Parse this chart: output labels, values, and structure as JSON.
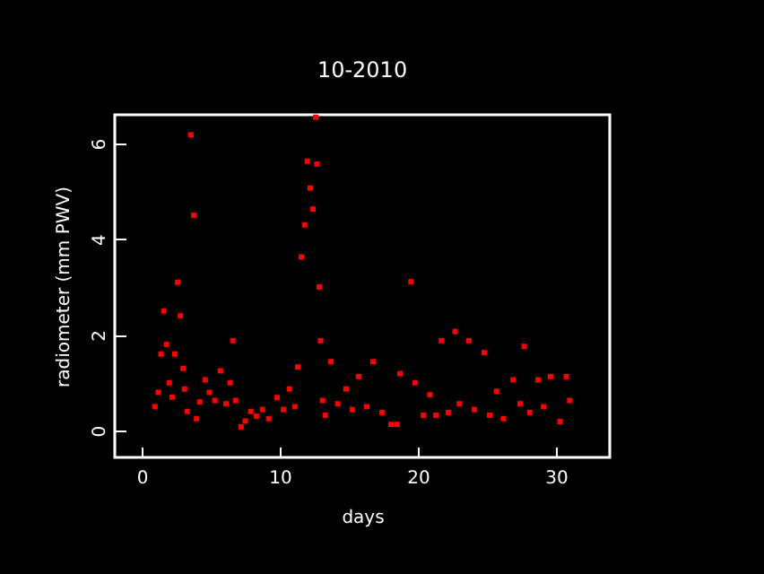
{
  "chart_data": {
    "type": "scatter",
    "title": "10-2010",
    "xlabel": "days",
    "ylabel": "radiometer (mm PWV)",
    "x": [
      0.96,
      1.2,
      1.4,
      1.6,
      1.8,
      2.0,
      2.2,
      2.4,
      2.6,
      2.8,
      3.0,
      3.1,
      3.3,
      3.56,
      3.77,
      3.97,
      4.2,
      4.6,
      4.9,
      5.3,
      5.7,
      6.1,
      6.4,
      6.6,
      6.8,
      7.2,
      7.5,
      7.9,
      8.3,
      8.75,
      9.2,
      9.8,
      10.26,
      10.7,
      11.1,
      11.3,
      11.56,
      11.8,
      12.0,
      12.2,
      12.4,
      12.6,
      12.7,
      12.86,
      12.95,
      13.1,
      13.3,
      13.7,
      14.2,
      14.8,
      15.25,
      15.7,
      16.3,
      16.75,
      17.4,
      18.05,
      18.5,
      18.7,
      19.5,
      19.8,
      20.4,
      20.87,
      21.3,
      21.7,
      22.2,
      22.7,
      23.0,
      23.7,
      24.1,
      24.8,
      25.2,
      25.7,
      26.2,
      26.9,
      27.4,
      27.7,
      28.1,
      28.7,
      29.1,
      29.6,
      30.3,
      30.75,
      31.0
    ],
    "series": [
      {
        "color": "#ff0000",
        "values": [
          0.5,
          0.8,
          1.6,
          2.5,
          1.8,
          1.0,
          0.7,
          1.6,
          3.1,
          2.4,
          1.3,
          0.87,
          0.4,
          6.18,
          4.5,
          0.25,
          0.6,
          1.06,
          0.8,
          0.63,
          1.25,
          0.56,
          1.0,
          1.88,
          0.63,
          0.08,
          0.2,
          0.4,
          0.3,
          0.44,
          0.25,
          0.69,
          0.44,
          0.87,
          0.5,
          1.33,
          3.63,
          4.3,
          5.63,
          5.07,
          4.63,
          6.55,
          5.57,
          3.0,
          1.88,
          0.63,
          0.32,
          1.44,
          0.56,
          0.87,
          0.44,
          1.13,
          0.5,
          1.44,
          0.38,
          0.13,
          0.13,
          1.19,
          3.11,
          1.0,
          0.32,
          0.75,
          0.32,
          1.88,
          0.38,
          2.07,
          0.56,
          1.88,
          0.44,
          1.63,
          0.32,
          0.82,
          0.25,
          1.06,
          0.56,
          1.76,
          0.38,
          1.06,
          0.5,
          1.13,
          0.19,
          1.13,
          0.63
        ]
      }
    ],
    "xlim": [
      -1.95,
      33.9
    ],
    "ylim": [
      -0.56,
      6.6
    ],
    "xticks": [
      0,
      10,
      20,
      30
    ],
    "yticks": [
      0,
      2,
      4,
      6
    ],
    "marker": "square"
  }
}
